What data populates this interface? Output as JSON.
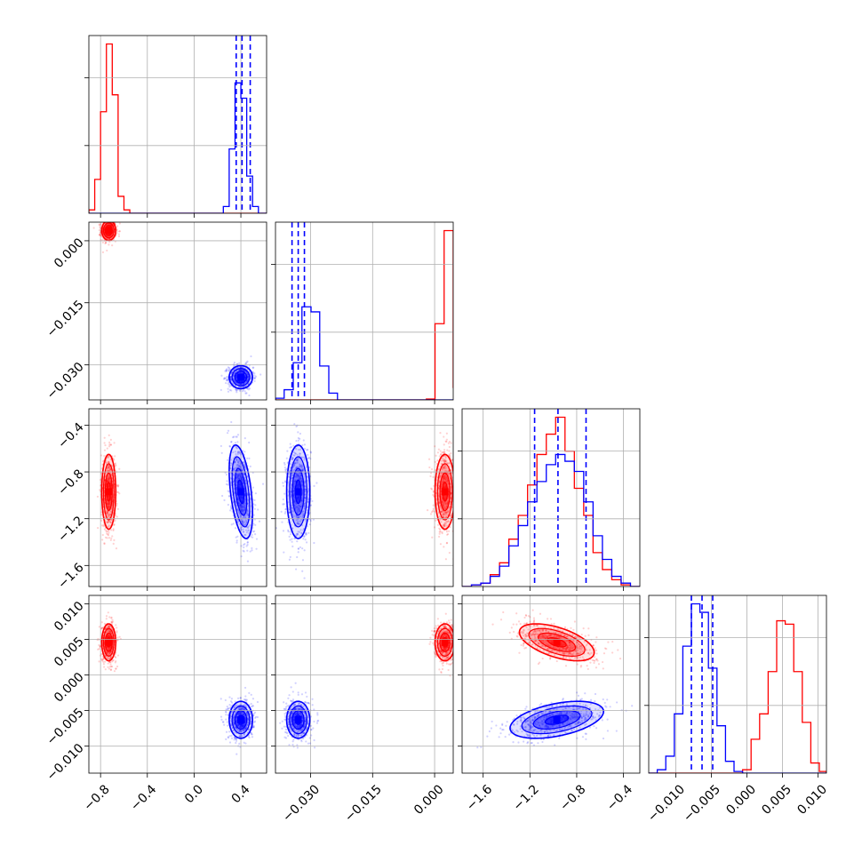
{
  "colors": {
    "series_a": "#ff0000",
    "series_b": "#0000ff",
    "grid": "#b0b0b0"
  },
  "chart_data": {
    "type": "corner",
    "grid": true,
    "parameters": [
      {
        "range": [
          -0.9,
          0.62
        ],
        "ticks": [
          -0.8,
          -0.4,
          0.0,
          0.4
        ],
        "tick_labels": [
          "−0.8",
          "−0.4",
          "0.0",
          "0.4"
        ]
      },
      {
        "range": [
          -0.0385,
          0.0045
        ],
        "ticks": [
          -0.03,
          -0.015,
          0.0
        ],
        "tick_labels": [
          "−0.030",
          "−0.015",
          "0.000"
        ]
      },
      {
        "range": [
          -1.78,
          -0.26
        ],
        "ticks": [
          -1.6,
          -1.2,
          -0.8,
          -0.4
        ],
        "tick_labels": [
          "−1.6",
          "−1.2",
          "−0.8",
          "−0.4"
        ]
      },
      {
        "range": [
          -0.0138,
          0.0112
        ],
        "ticks": [
          -0.01,
          -0.005,
          0.0,
          0.005,
          0.01
        ],
        "tick_labels": [
          "−0.010",
          "−0.005",
          "0.000",
          "0.005",
          "0.010"
        ]
      }
    ],
    "series": [
      {
        "color": "#ff0000",
        "mean": [
          -0.73,
          0.0025,
          -0.97,
          0.0046
        ],
        "std": [
          0.03,
          0.0012,
          0.16,
          0.0013
        ],
        "corr": {
          "2-3": -0.55
        },
        "histograms": [
          {
            "edges": [
              -0.9,
              -0.85,
              -0.8,
              -0.75,
              -0.7,
              -0.65,
              -0.6,
              -0.55,
              -0.5,
              -0.45,
              -0.4,
              -0.35,
              -0.3,
              -0.25,
              -0.2,
              -0.15,
              -0.1,
              -0.05,
              0.0,
              0.05,
              0.1,
              0.15,
              0.2,
              0.25,
              0.3,
              0.35,
              0.4,
              0.45,
              0.5,
              0.55,
              0.6,
              0.62
            ],
            "values": [
              0.02,
              0.2,
              0.6,
              1.0,
              0.7,
              0.1,
              0.02,
              0,
              0,
              0,
              0,
              0,
              0,
              0,
              0,
              0,
              0,
              0,
              0,
              0,
              0,
              0,
              0,
              0,
              0,
              0,
              0,
              0,
              0,
              0,
              0
            ]
          },
          {
            "edges": [
              -0.0385,
              -0.0364,
              -0.0342,
              -0.0321,
              -0.0299,
              -0.0278,
              -0.0256,
              -0.0235,
              -0.0213,
              -0.0192,
              -0.017,
              -0.0149,
              -0.0127,
              -0.0106,
              -0.0084,
              -0.0063,
              -0.0041,
              -0.002,
              0.0001,
              0.0023,
              0.0045
            ],
            "values": [
              0,
              0,
              0,
              0,
              0,
              0,
              0,
              0,
              0,
              0,
              0,
              0,
              0,
              0,
              0,
              0,
              0,
              0.005,
              0.45,
              1.0,
              0.07
            ]
          },
          {
            "edges": [
              -1.78,
              -1.7,
              -1.62,
              -1.54,
              -1.46,
              -1.38,
              -1.3,
              -1.22,
              -1.14,
              -1.06,
              -0.98,
              -0.9,
              -0.82,
              -0.74,
              -0.66,
              -0.58,
              -0.5,
              -0.42,
              -0.34,
              -0.26
            ],
            "values": [
              0,
              0.01,
              0.02,
              0.07,
              0.14,
              0.28,
              0.42,
              0.6,
              0.78,
              0.9,
              1.0,
              0.8,
              0.58,
              0.42,
              0.2,
              0.1,
              0.04,
              0.01,
              0
            ]
          },
          {
            "edges": [
              -0.0138,
              -0.0126,
              -0.0114,
              -0.0102,
              -0.009,
              -0.0078,
              -0.0066,
              -0.0054,
              -0.0042,
              -0.003,
              -0.0018,
              -0.0006,
              0.0006,
              0.0018,
              0.003,
              0.0042,
              0.0054,
              0.0066,
              0.0078,
              0.009,
              0.0102,
              0.0112
            ],
            "values": [
              0,
              0,
              0,
              0,
              0,
              0,
              0,
              0,
              0,
              0,
              0,
              0.02,
              0.2,
              0.35,
              0.6,
              0.9,
              0.88,
              0.6,
              0.3,
              0.06,
              0.01
            ]
          }
        ]
      },
      {
        "color": "#0000ff",
        "mean": [
          0.4,
          -0.033,
          -0.97,
          -0.0063
        ],
        "std": [
          0.05,
          0.0014,
          0.2,
          0.0013
        ],
        "corr": {
          "0-2": -0.45,
          "2-3": 0.45
        },
        "quantiles": [
          [
            0.36,
            0.41,
            0.48
          ],
          [
            -0.0345,
            -0.033,
            -0.0315
          ],
          [
            -1.16,
            -0.96,
            -0.72
          ],
          [
            -0.0078,
            -0.0063,
            -0.0048
          ]
        ],
        "histograms": [
          {
            "edges": [
              -0.9,
              -0.85,
              -0.8,
              -0.75,
              -0.7,
              -0.65,
              -0.6,
              -0.55,
              -0.5,
              -0.45,
              -0.4,
              -0.35,
              -0.3,
              -0.25,
              -0.2,
              -0.15,
              -0.1,
              -0.05,
              0.0,
              0.05,
              0.1,
              0.15,
              0.2,
              0.25,
              0.3,
              0.35,
              0.4,
              0.45,
              0.5,
              0.55,
              0.6,
              0.62
            ],
            "values": [
              0,
              0,
              0,
              0,
              0,
              0,
              0,
              0,
              0,
              0,
              0,
              0,
              0,
              0,
              0,
              0,
              0,
              0,
              0,
              0,
              0,
              0,
              0,
              0.04,
              0.38,
              0.77,
              0.68,
              0.22,
              0.04,
              0,
              0
            ]
          },
          {
            "edges": [
              -0.0385,
              -0.0364,
              -0.0342,
              -0.0321,
              -0.0299,
              -0.0278,
              -0.0256,
              -0.0235,
              -0.0213,
              -0.0192,
              -0.017,
              -0.0149,
              -0.0127,
              -0.0106,
              -0.0084,
              -0.0063,
              -0.0041,
              -0.002,
              0.0001,
              0.0023,
              0.0045
            ],
            "values": [
              0.01,
              0.06,
              0.22,
              0.55,
              0.52,
              0.2,
              0.04,
              0,
              0,
              0,
              0,
              0,
              0,
              0,
              0,
              0,
              0,
              0,
              0,
              0
            ]
          },
          {
            "edges": [
              -1.78,
              -1.7,
              -1.62,
              -1.54,
              -1.46,
              -1.38,
              -1.3,
              -1.22,
              -1.14,
              -1.06,
              -0.98,
              -0.9,
              -0.82,
              -0.74,
              -0.66,
              -0.58,
              -0.5,
              -0.42,
              -0.34,
              -0.26
            ],
            "values": [
              0,
              0.01,
              0.02,
              0.06,
              0.12,
              0.24,
              0.36,
              0.5,
              0.62,
              0.72,
              0.78,
              0.74,
              0.68,
              0.5,
              0.3,
              0.16,
              0.06,
              0.02,
              0
            ]
          },
          {
            "edges": [
              -0.0138,
              -0.0126,
              -0.0114,
              -0.0102,
              -0.009,
              -0.0078,
              -0.0066,
              -0.0054,
              -0.0042,
              -0.003,
              -0.0018,
              -0.0006,
              0.0006,
              0.0018,
              0.003,
              0.0042,
              0.0054,
              0.0066,
              0.0078,
              0.009,
              0.0102,
              0.0112
            ],
            "values": [
              0,
              0.02,
              0.1,
              0.35,
              0.75,
              1.0,
              0.95,
              0.62,
              0.28,
              0.07,
              0.01,
              0,
              0,
              0,
              0,
              0,
              0,
              0,
              0,
              0,
              0
            ]
          }
        ]
      }
    ]
  }
}
